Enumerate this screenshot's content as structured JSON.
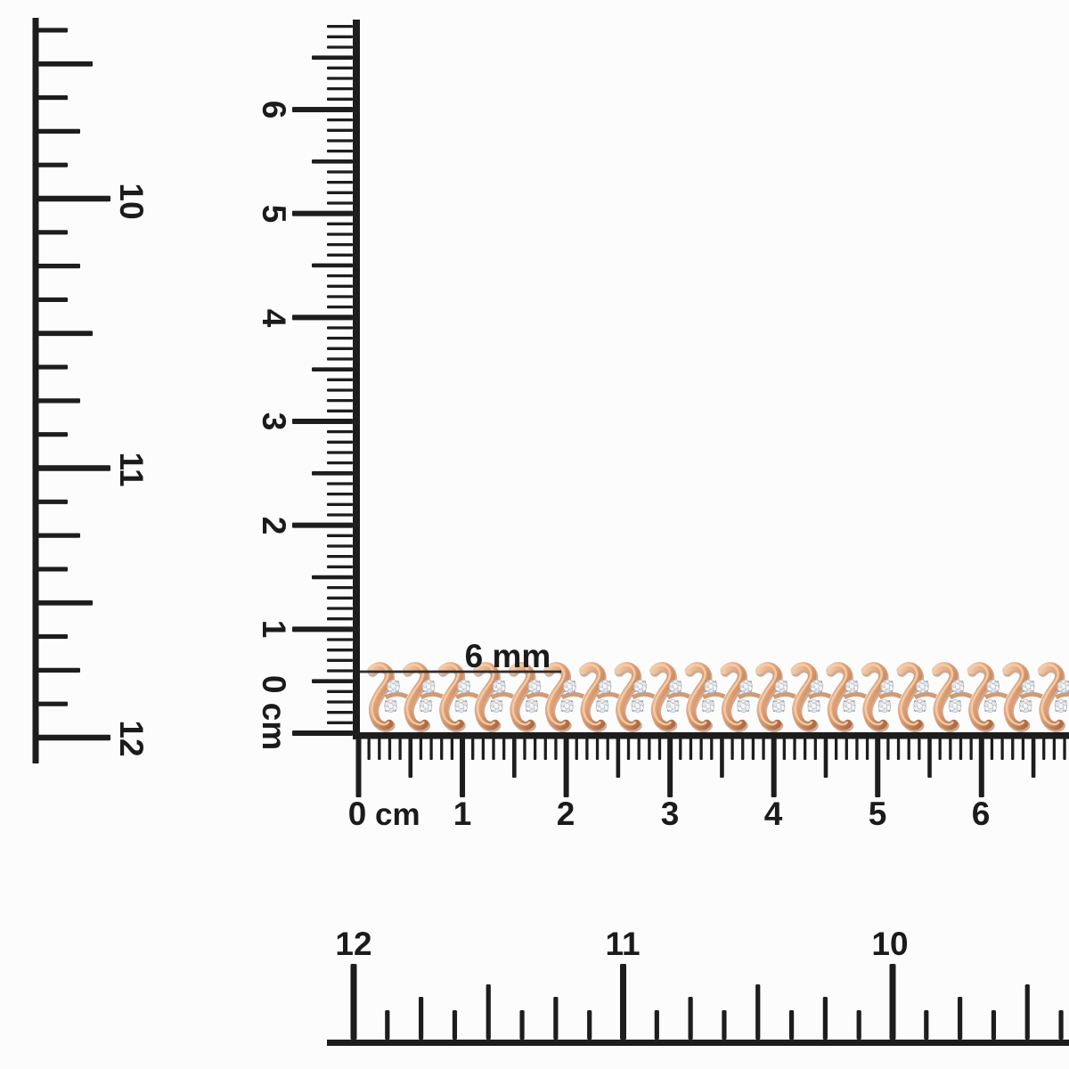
{
  "scene": {
    "description": "Rose gold diamond S-link tennis bracelet photographed against cm and inch rulers",
    "background": "#fcfcfd",
    "ink": "#1d1d1d"
  },
  "annotation": {
    "size_label": "6 mm"
  },
  "rulers": {
    "left_inch": {
      "labels": [
        "10",
        "11",
        "12"
      ]
    },
    "vertical_cm": {
      "labels": [
        "6",
        "5",
        "4",
        "3",
        "2",
        "1"
      ],
      "zero": "0 cm"
    },
    "horizontal_cm": {
      "zero": "0",
      "unit": "cm",
      "labels": [
        "1",
        "2",
        "3",
        "4",
        "5",
        "6"
      ]
    },
    "bottom_inch": {
      "labels": [
        "12",
        "11",
        "10"
      ]
    }
  },
  "colors": {
    "ink": "#1d1d1d",
    "annotation_line": "#2e2e2e",
    "gold_light": "#f4cda9",
    "gold_base": "#dd9f74",
    "gold_dark": "#b06e46",
    "gold_deep": "#9a5c38",
    "gold_connector": "#c8895e",
    "diamond_light": "#f3f5f7",
    "diamond_mid": "#e4e7ea",
    "diamond_base": "#c7ccd2",
    "diamond_shade": "#aab0b8",
    "prong": "#8d949b",
    "sparkle": "#ffffff"
  }
}
